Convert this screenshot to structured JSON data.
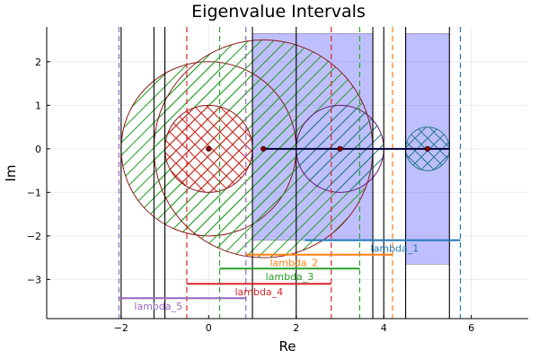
{
  "chart_data": {
    "type": "scatter",
    "title": "Eigenvalue Intervals",
    "xlabel": "Re",
    "ylabel": "Im",
    "xlim": [
      -3.7,
      7.3
    ],
    "ylim": [
      -3.9,
      2.8
    ],
    "xticks": [
      -2,
      0,
      2,
      4,
      6
    ],
    "xtick_labels": [
      "−2",
      "0",
      "2",
      "4",
      "6"
    ],
    "yticks": [
      -3,
      -2,
      -1,
      0,
      1,
      2
    ],
    "ytick_labels": [
      "−3",
      "−2",
      "−1",
      "0",
      "1",
      "2"
    ],
    "grid": true,
    "colors": {
      "lambda_1": "#1f77b4",
      "lambda_2": "#ff7f0e",
      "lambda_3": "#2ca02c",
      "lambda_4": "#d62728",
      "lambda_5": "#9467bd",
      "blue_fill": "#0000ff",
      "dark_red": "#8b1a1a",
      "purple": "#6a1b6a",
      "teal": "#2a7a8a",
      "point": "#8b0000"
    },
    "rectangles": [
      {
        "x": [
          1.0,
          3.75
        ],
        "y": [
          -2.1,
          2.65
        ],
        "color": "#0000ff",
        "opacity": 0.25
      },
      {
        "x": [
          4.5,
          5.5
        ],
        "y": [
          -2.65,
          2.65
        ],
        "color": "#0000ff",
        "opacity": 0.25
      }
    ],
    "circles": [
      {
        "cx": 0,
        "cy": 0,
        "r": 2.0,
        "edge": "#8b1a1a",
        "hatch": "#2ca02c",
        "hatch_style": "diagonal"
      },
      {
        "cx": 1.25,
        "cy": 0,
        "r": 2.5,
        "edge": "#8b1a1a",
        "hatch": "#2ca02c",
        "hatch_style": "diagonal"
      },
      {
        "cx": 0,
        "cy": 0,
        "r": 1.0,
        "edge": "#8b1a1a",
        "hatch": "#d62728",
        "hatch_style": "cross"
      },
      {
        "cx": 3.0,
        "cy": 0,
        "r": 1.0,
        "edge": "#6a1b6a",
        "hatch": "#2a7a8a",
        "hatch_style": "diagonal"
      },
      {
        "cx": 5.0,
        "cy": 0,
        "r": 0.5,
        "edge": "#2a7a8a",
        "hatch": "#2a7a8a",
        "hatch_style": "cross"
      }
    ],
    "eigenvalue_points": [
      {
        "x": 0,
        "y": 0
      },
      {
        "x": 1.25,
        "y": 0
      },
      {
        "x": 3.0,
        "y": 0
      },
      {
        "x": 5.0,
        "y": 0
      }
    ],
    "segments": [
      {
        "x": [
          1.25,
          5.5
        ],
        "y": [
          0,
          0
        ],
        "color": "#00003a"
      }
    ],
    "vertical_lines_solid": [
      -2.0,
      -1.25,
      -1.0,
      1.0,
      2.0,
      3.75,
      4.0,
      4.5,
      5.5
    ],
    "vertical_lines_dashed": [
      {
        "x": -2.05,
        "color": "#9467bd"
      },
      {
        "x": -0.5,
        "color": "#d62728"
      },
      {
        "x": 0.25,
        "color": "#2ca02c"
      },
      {
        "x": 0.85,
        "color": "#9467bd"
      },
      {
        "x": 2.8,
        "color": "#d62728"
      },
      {
        "x": 3.45,
        "color": "#2ca02c"
      },
      {
        "x": 4.2,
        "color": "#ff7f0e"
      },
      {
        "x": 5.75,
        "color": "#1f77b4"
      }
    ],
    "intervals": [
      {
        "name": "lambda_1",
        "label": "lambda_1",
        "x": [
          2.2,
          5.75
        ],
        "y": -2.1,
        "color": "#1f77b4",
        "label_x": 4.25,
        "label_y": -2.28
      },
      {
        "name": "lambda_2",
        "label": "lambda_2",
        "x": [
          0.85,
          4.2
        ],
        "y": -2.43,
        "color": "#ff7f0e",
        "label_x": 1.95,
        "label_y": -2.61
      },
      {
        "name": "lambda_3",
        "label": "lambda_3",
        "x": [
          0.25,
          3.45
        ],
        "y": -2.75,
        "color": "#2ca02c",
        "label_x": 1.85,
        "label_y": -2.93
      },
      {
        "name": "lambda_4",
        "label": "lambda_4",
        "x": [
          -0.5,
          2.8
        ],
        "y": -3.1,
        "color": "#d62728",
        "label_x": 1.15,
        "label_y": -3.28
      },
      {
        "name": "lambda_5",
        "label": "lambda_5",
        "x": [
          -2.05,
          0.85
        ],
        "y": -3.43,
        "color": "#9467bd",
        "label_x": -1.15,
        "label_y": -3.61
      }
    ]
  }
}
